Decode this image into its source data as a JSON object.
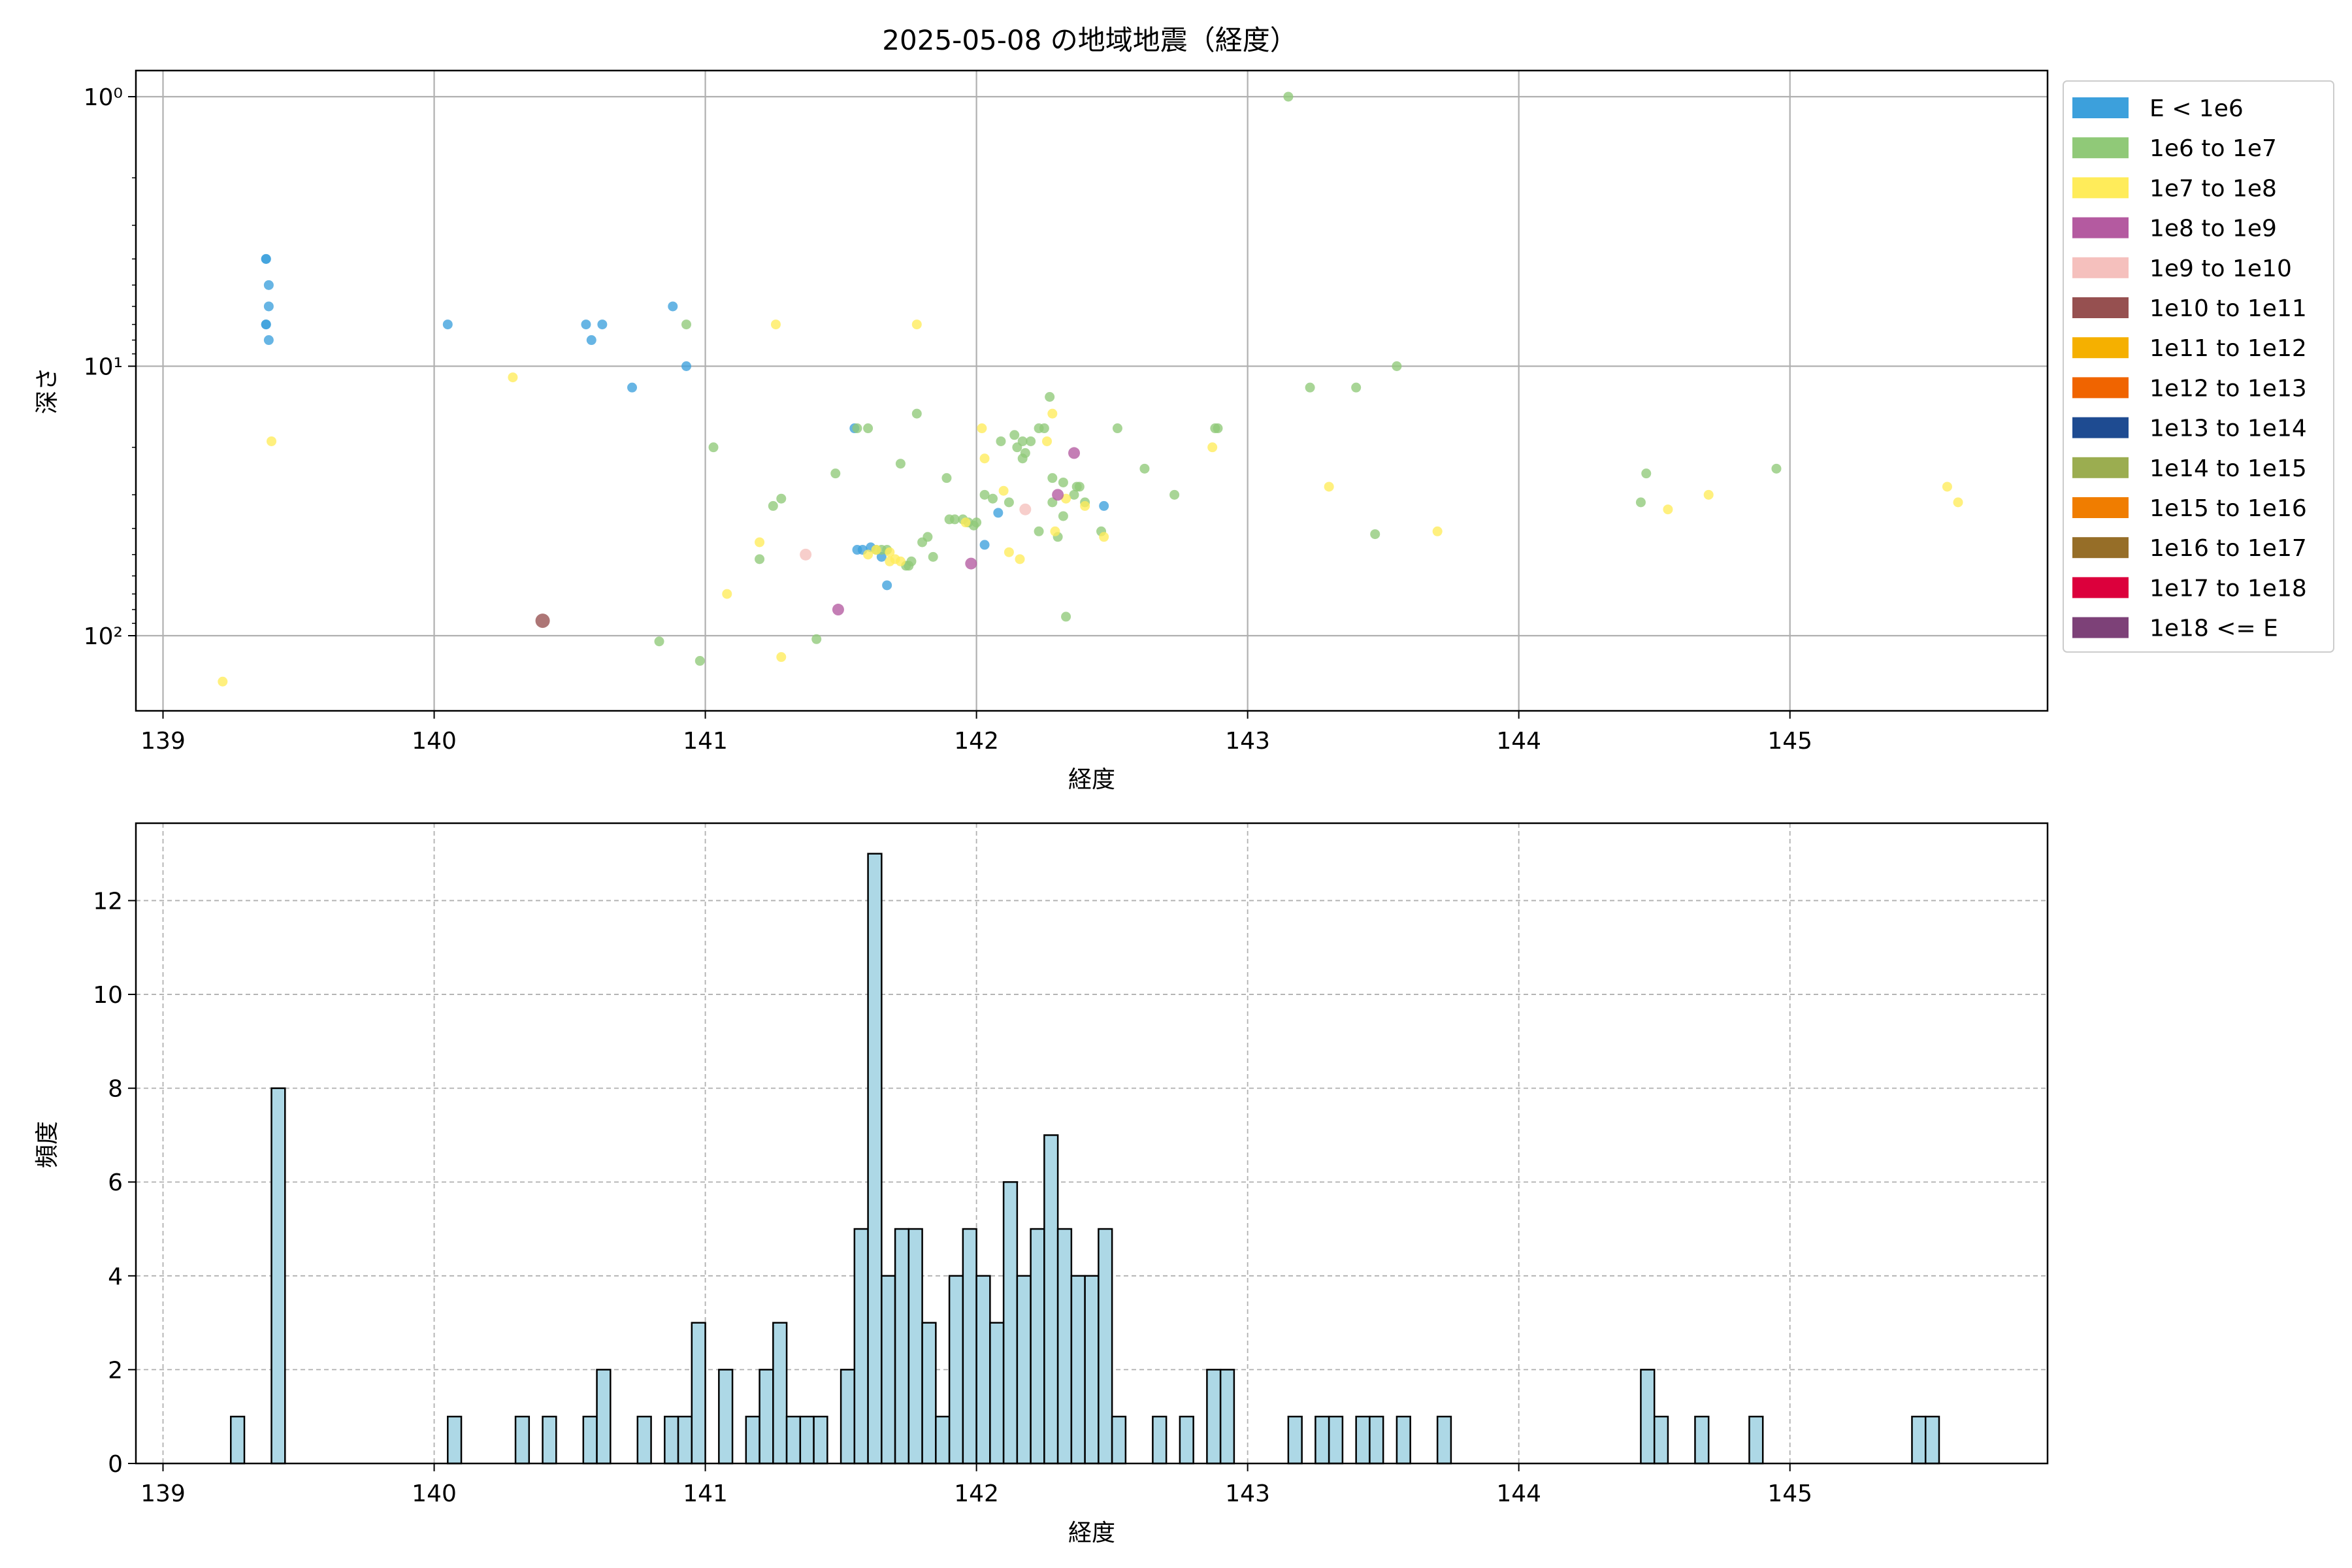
{
  "chart_data": [
    {
      "type": "scatter",
      "title": "2025-05-08 の地域地震（経度）",
      "xlabel": "経度",
      "ylabel": "深さ",
      "xlim": [
        138.9,
        145.95
      ],
      "ylim": [
        190,
        0.8
      ],
      "y_scale": "log",
      "y_inverted": true,
      "xticks": [
        139,
        140,
        141,
        142,
        143,
        144,
        145
      ],
      "yticks": [
        {
          "value": 1,
          "label": "10⁰"
        },
        {
          "value": 10,
          "label": "10¹"
        },
        {
          "value": 100,
          "label": "10²"
        }
      ],
      "grid": true,
      "legend_position": "outside-right",
      "legend": [
        {
          "label": "E < 1e6",
          "color": "#3ca0dc"
        },
        {
          "label": "1e6 to 1e7",
          "color": "#90c978"
        },
        {
          "label": "1e7 to 1e8",
          "color": "#ffec5a"
        },
        {
          "label": "1e8 to 1e9",
          "color": "#b45aa0"
        },
        {
          "label": "1e9 to 1e10",
          "color": "#f5c0bd"
        },
        {
          "label": "1e10 to 1e11",
          "color": "#965050"
        },
        {
          "label": "1e11 to 1e12",
          "color": "#f5b000"
        },
        {
          "label": "1e12 to 1e13",
          "color": "#f06400"
        },
        {
          "label": "1e13 to 1e14",
          "color": "#1e4b91"
        },
        {
          "label": "1e14 to 1e15",
          "color": "#9bad50"
        },
        {
          "label": "1e15 to 1e16",
          "color": "#f07d00"
        },
        {
          "label": "1e16 to 1e17",
          "color": "#966e28"
        },
        {
          "label": "1e17 to 1e18",
          "color": "#dc003c"
        },
        {
          "label": "1e18 <= E",
          "color": "#7d4178"
        }
      ],
      "series": [
        {
          "class": 0,
          "points": [
            [
              139.38,
              4
            ],
            [
              139.38,
              4
            ],
            [
              139.39,
              5
            ],
            [
              139.39,
              6
            ],
            [
              139.38,
              7
            ],
            [
              139.38,
              7
            ],
            [
              139.39,
              8
            ],
            [
              140.05,
              7
            ],
            [
              140.56,
              7
            ],
            [
              140.58,
              8
            ],
            [
              140.62,
              7
            ],
            [
              140.73,
              12
            ],
            [
              140.88,
              6
            ],
            [
              140.93,
              10
            ],
            [
              141.56,
              48
            ],
            [
              141.58,
              48
            ],
            [
              141.61,
              47
            ],
            [
              141.65,
              51
            ],
            [
              141.67,
              65
            ],
            [
              142.03,
              46
            ],
            [
              142.08,
              35
            ],
            [
              142.47,
              33
            ],
            [
              141.55,
              17
            ]
          ]
        },
        {
          "class": 1,
          "points": [
            [
              140.93,
              7
            ],
            [
              141.03,
              20
            ],
            [
              141.2,
              52
            ],
            [
              141.25,
              33
            ],
            [
              141.28,
              31
            ],
            [
              141.48,
              25
            ],
            [
              141.56,
              17
            ],
            [
              141.6,
              17
            ],
            [
              141.63,
              48
            ],
            [
              141.65,
              48
            ],
            [
              141.67,
              48
            ],
            [
              141.72,
              23
            ],
            [
              141.74,
              55
            ],
            [
              141.75,
              55
            ],
            [
              141.76,
              53
            ],
            [
              141.78,
              15
            ],
            [
              141.8,
              45
            ],
            [
              141.82,
              43
            ],
            [
              141.84,
              51
            ],
            [
              141.89,
              26
            ],
            [
              141.9,
              37
            ],
            [
              141.92,
              37
            ],
            [
              141.95,
              37
            ],
            [
              141.97,
              38
            ],
            [
              141.99,
              39
            ],
            [
              142.0,
              38
            ],
            [
              142.03,
              30
            ],
            [
              142.06,
              31
            ],
            [
              142.09,
              19
            ],
            [
              142.12,
              32
            ],
            [
              142.14,
              18
            ],
            [
              142.15,
              20
            ],
            [
              142.17,
              22
            ],
            [
              142.17,
              19
            ],
            [
              142.18,
              21
            ],
            [
              142.2,
              19
            ],
            [
              142.23,
              17
            ],
            [
              142.23,
              41
            ],
            [
              142.25,
              17
            ],
            [
              142.27,
              13
            ],
            [
              142.28,
              26
            ],
            [
              142.28,
              32
            ],
            [
              142.3,
              43
            ],
            [
              142.32,
              36
            ],
            [
              142.32,
              27
            ],
            [
              142.33,
              85
            ],
            [
              142.36,
              30
            ],
            [
              142.37,
              28
            ],
            [
              142.38,
              28
            ],
            [
              142.4,
              32
            ],
            [
              142.46,
              41
            ],
            [
              142.52,
              17
            ],
            [
              142.62,
              24
            ],
            [
              142.73,
              30
            ],
            [
              142.88,
              17
            ],
            [
              142.89,
              17
            ],
            [
              143.15,
              1
            ],
            [
              143.23,
              12
            ],
            [
              143.4,
              12
            ],
            [
              143.47,
              42
            ],
            [
              143.55,
              10
            ],
            [
              144.45,
              32
            ],
            [
              144.47,
              25
            ],
            [
              144.95,
              24
            ],
            [
              140.83,
              105
            ],
            [
              140.98,
              124
            ],
            [
              141.41,
              103
            ]
          ]
        },
        {
          "class": 2,
          "points": [
            [
              139.22,
              148
            ],
            [
              139.4,
              19
            ],
            [
              140.29,
              11
            ],
            [
              141.08,
              70
            ],
            [
              141.2,
              45
            ],
            [
              141.26,
              7
            ],
            [
              141.28,
              120
            ],
            [
              141.6,
              50
            ],
            [
              141.63,
              48
            ],
            [
              141.68,
              53
            ],
            [
              141.72,
              53
            ],
            [
              141.78,
              7
            ],
            [
              142.02,
              17
            ],
            [
              142.03,
              22
            ],
            [
              142.1,
              29
            ],
            [
              142.12,
              49
            ],
            [
              142.16,
              52
            ],
            [
              142.26,
              19
            ],
            [
              142.28,
              15
            ],
            [
              142.29,
              41
            ],
            [
              142.33,
              31
            ],
            [
              142.4,
              33
            ],
            [
              142.47,
              43
            ],
            [
              142.87,
              20
            ],
            [
              143.3,
              28
            ],
            [
              143.7,
              41
            ],
            [
              144.55,
              34
            ],
            [
              144.7,
              30
            ],
            [
              145.58,
              28
            ],
            [
              145.62,
              32
            ],
            [
              141.96,
              38
            ],
            [
              141.68,
              49
            ],
            [
              141.7,
              52
            ]
          ]
        },
        {
          "class": 3,
          "points": [
            [
              141.49,
              80
            ],
            [
              141.98,
              54
            ],
            [
              142.3,
              30
            ],
            [
              142.36,
              21
            ]
          ]
        },
        {
          "class": 4,
          "points": [
            [
              141.37,
              50
            ],
            [
              142.18,
              34
            ]
          ]
        },
        {
          "class": 5,
          "points": [
            [
              140.4,
              88
            ]
          ]
        }
      ]
    },
    {
      "type": "bar",
      "subtype": "histogram",
      "xlabel": "経度",
      "ylabel": "頻度",
      "xlim": [
        138.9,
        145.95
      ],
      "ylim": [
        0,
        13.65
      ],
      "xticks": [
        139,
        140,
        141,
        142,
        143,
        144,
        145
      ],
      "yticks": [
        0,
        2,
        4,
        6,
        8,
        10,
        12
      ],
      "grid": true,
      "grid_style": "dashed",
      "bar_color": "#add8e6",
      "bin_start": 139.0,
      "bin_width": 0.05,
      "values": [
        0,
        0,
        0,
        0,
        0,
        1,
        0,
        0,
        8,
        0,
        0,
        0,
        0,
        0,
        0,
        0,
        0,
        0,
        0,
        0,
        0,
        1,
        0,
        0,
        0,
        0,
        1,
        0,
        1,
        0,
        0,
        1,
        2,
        0,
        0,
        1,
        0,
        1,
        1,
        3,
        0,
        2,
        0,
        1,
        2,
        3,
        1,
        1,
        1,
        0,
        2,
        5,
        13,
        4,
        5,
        5,
        3,
        1,
        4,
        5,
        4,
        3,
        6,
        4,
        5,
        7,
        5,
        4,
        4,
        5,
        1,
        0,
        0,
        1,
        0,
        1,
        0,
        2,
        2,
        0,
        0,
        0,
        0,
        1,
        0,
        1,
        1,
        0,
        1,
        1,
        0,
        1,
        0,
        0,
        1,
        0,
        0,
        0,
        0,
        0,
        0,
        0,
        0,
        0,
        0,
        0,
        0,
        0,
        0,
        2,
        1,
        0,
        0,
        1,
        0,
        0,
        0,
        1,
        0,
        0,
        0,
        0,
        0,
        0,
        0,
        0,
        0,
        0,
        0,
        1,
        1
      ]
    }
  ]
}
